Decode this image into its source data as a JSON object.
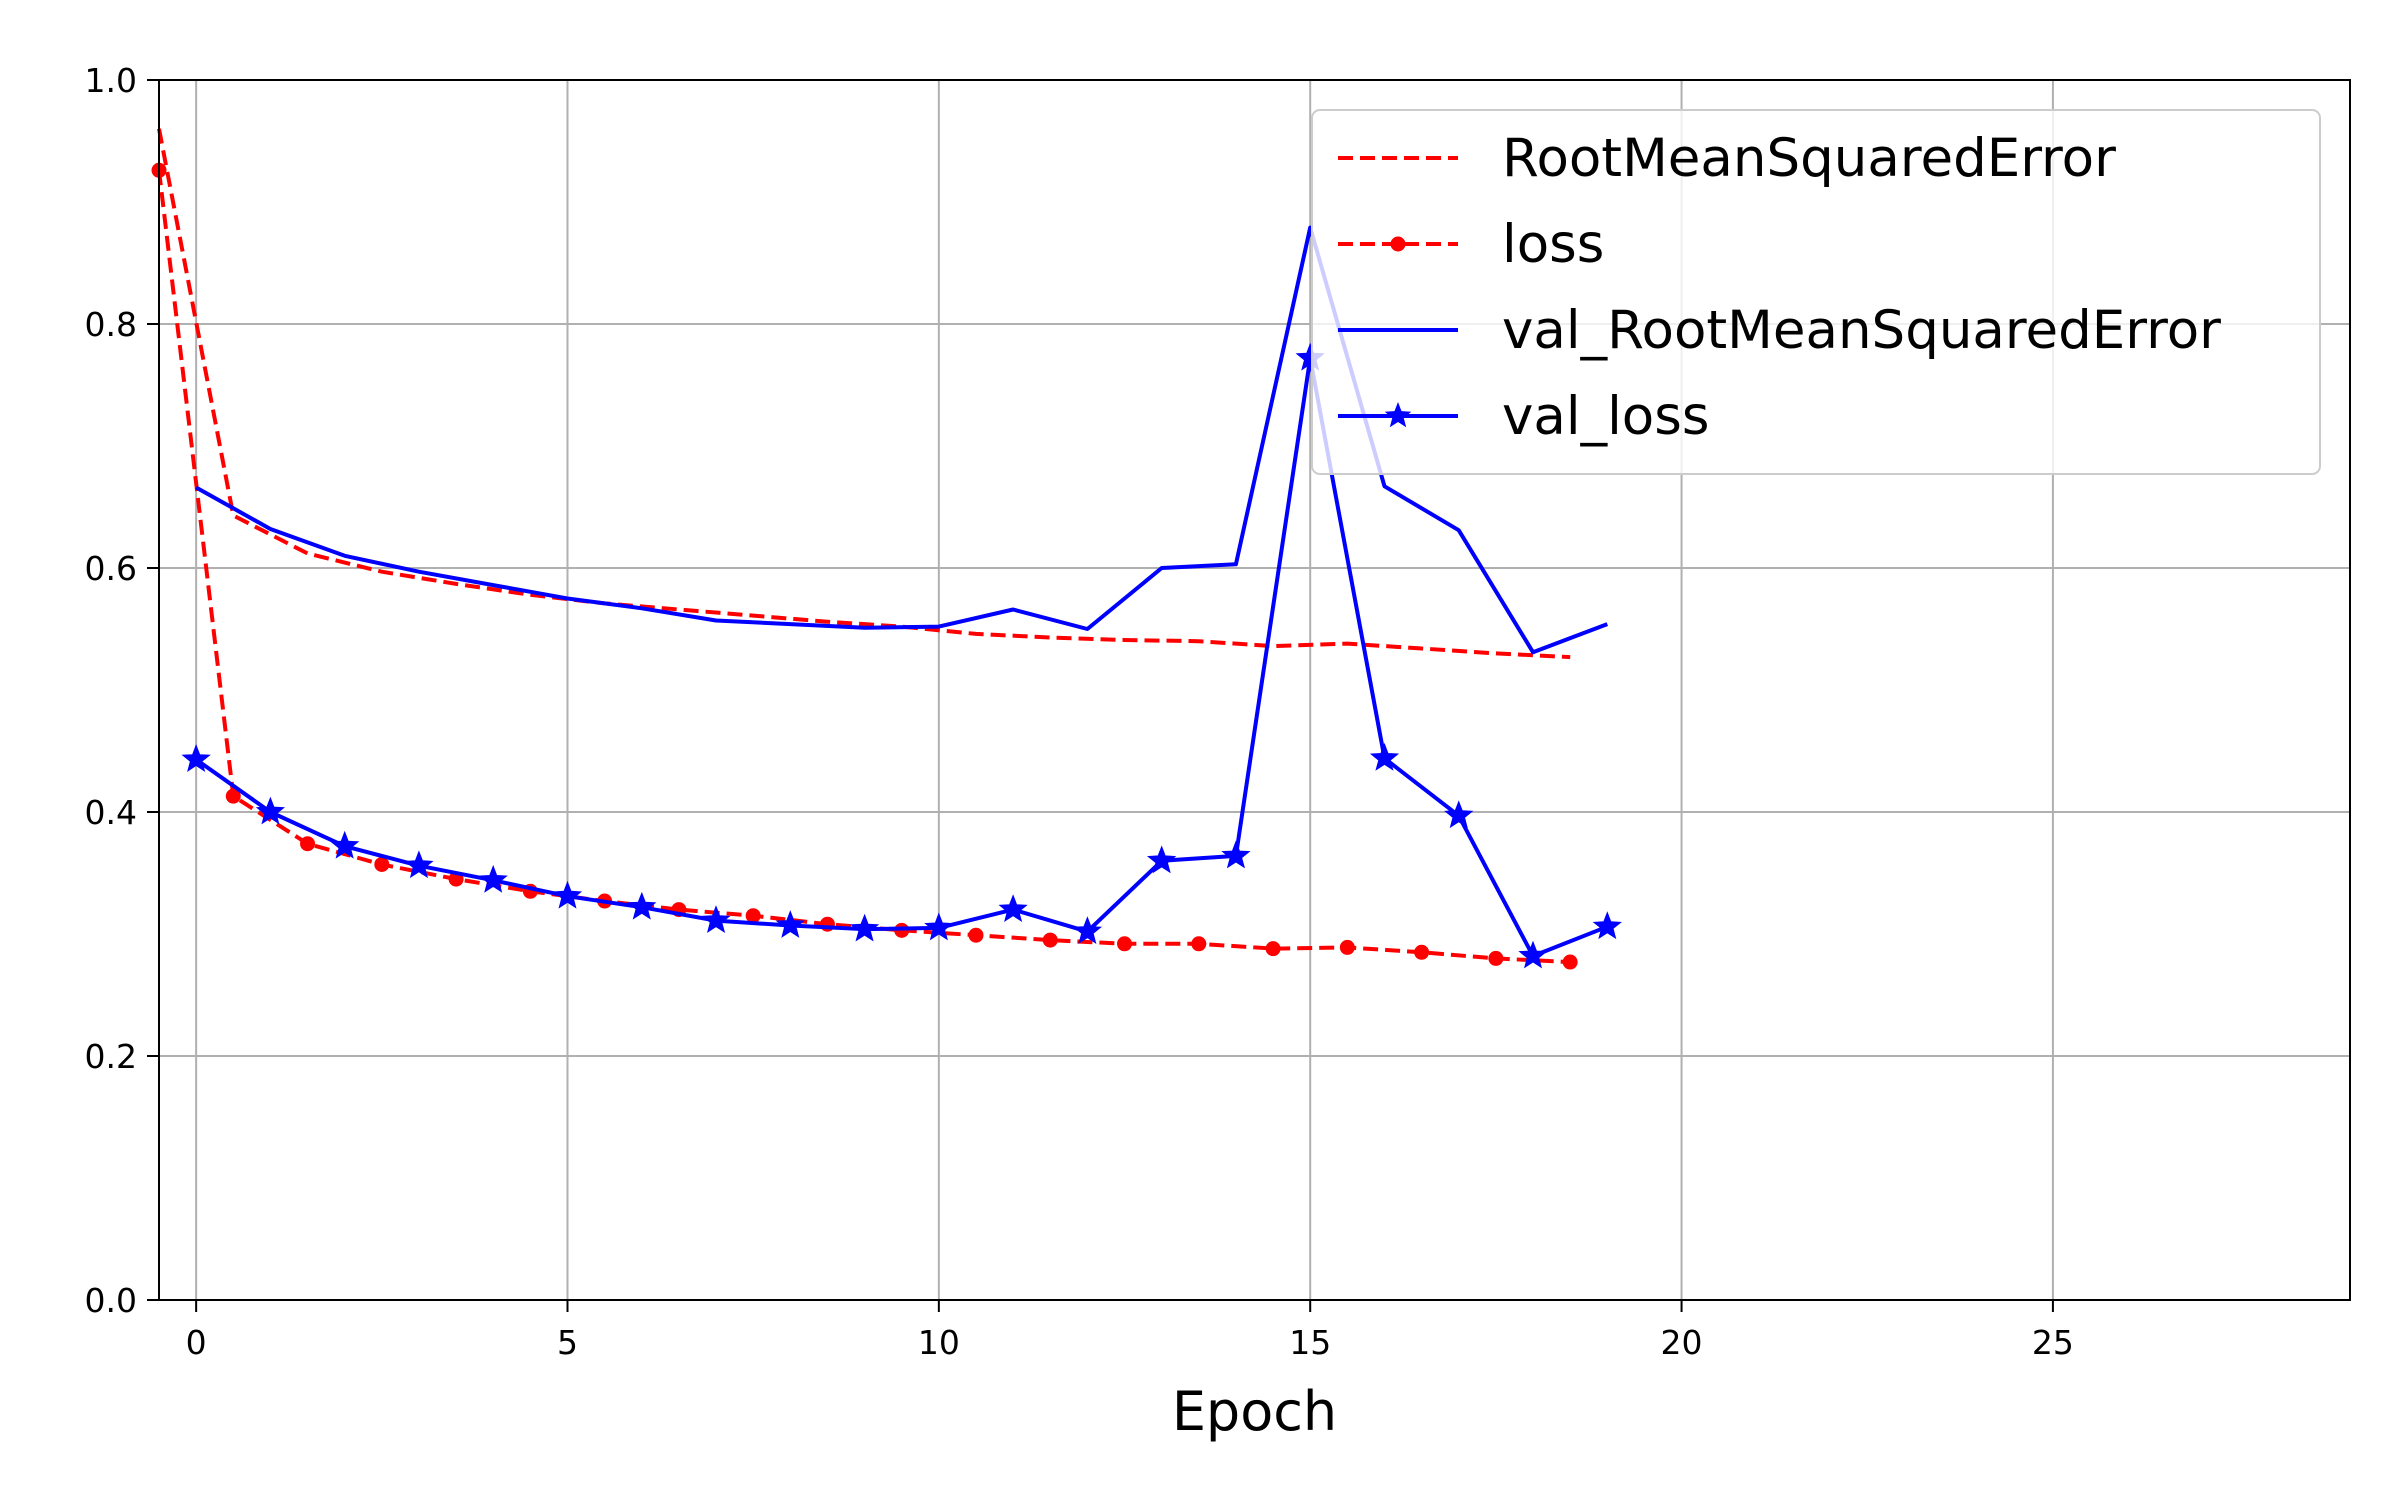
{
  "chart_data": {
    "type": "line",
    "title": "",
    "xlabel": "Epoch",
    "ylabel": "",
    "xlim": [
      -0.5,
      29
    ],
    "ylim": [
      0,
      1.0
    ],
    "xticks": [
      "0",
      "5",
      "10",
      "15",
      "20",
      "25"
    ],
    "yticks": [
      "0.0",
      "0.2",
      "0.4",
      "0.6",
      "0.8",
      "1.0"
    ],
    "grid": true,
    "legend_position": "top-right",
    "series": [
      {
        "name": "RootMeanSquaredError",
        "color": "#ff0000",
        "style": "dashed",
        "marker": "none",
        "x": [
          -0.5,
          0.5,
          1.5,
          2.5,
          3.5,
          4.5,
          5.5,
          6.5,
          7.5,
          8.5,
          9.5,
          10.5,
          11.5,
          12.5,
          13.5,
          14.5,
          15.5,
          16.5,
          17.5,
          18.5
        ],
        "y": [
          0.96,
          0.643,
          0.612,
          0.597,
          0.587,
          0.578,
          0.571,
          0.566,
          0.561,
          0.556,
          0.552,
          0.546,
          0.543,
          0.541,
          0.54,
          0.536,
          0.538,
          0.534,
          0.53,
          0.527
        ]
      },
      {
        "name": "loss",
        "color": "#ff0000",
        "style": "dashed",
        "marker": "dot",
        "x": [
          -0.5,
          0.5,
          1.5,
          2.5,
          3.5,
          4.5,
          5.5,
          6.5,
          7.5,
          8.5,
          9.5,
          10.5,
          11.5,
          12.5,
          13.5,
          14.5,
          15.5,
          16.5,
          17.5,
          18.5
        ],
        "y": [
          0.926,
          0.413,
          0.374,
          0.357,
          0.345,
          0.335,
          0.327,
          0.32,
          0.315,
          0.308,
          0.303,
          0.299,
          0.295,
          0.292,
          0.292,
          0.288,
          0.289,
          0.285,
          0.28,
          0.277
        ]
      },
      {
        "name": "val_RootMeanSquaredError",
        "color": "#0000ff",
        "style": "solid",
        "marker": "none",
        "x": [
          0,
          1,
          2,
          3,
          4,
          5,
          6,
          7,
          8,
          9,
          10,
          11,
          12,
          13,
          14,
          15,
          16,
          17,
          18,
          19
        ],
        "y": [
          0.666,
          0.632,
          0.61,
          0.597,
          0.586,
          0.575,
          0.567,
          0.557,
          0.554,
          0.551,
          0.552,
          0.566,
          0.55,
          0.6,
          0.603,
          0.879,
          0.667,
          0.631,
          0.531,
          0.554
        ]
      },
      {
        "name": "val_loss",
        "color": "#0000ff",
        "style": "solid",
        "marker": "star",
        "x": [
          0,
          1,
          2,
          3,
          4,
          5,
          6,
          7,
          8,
          9,
          10,
          11,
          12,
          13,
          14,
          15,
          16,
          17,
          18,
          19
        ],
        "y": [
          0.443,
          0.4,
          0.372,
          0.356,
          0.344,
          0.331,
          0.322,
          0.311,
          0.307,
          0.304,
          0.305,
          0.32,
          0.302,
          0.36,
          0.364,
          0.772,
          0.444,
          0.397,
          0.282,
          0.306
        ]
      }
    ]
  }
}
